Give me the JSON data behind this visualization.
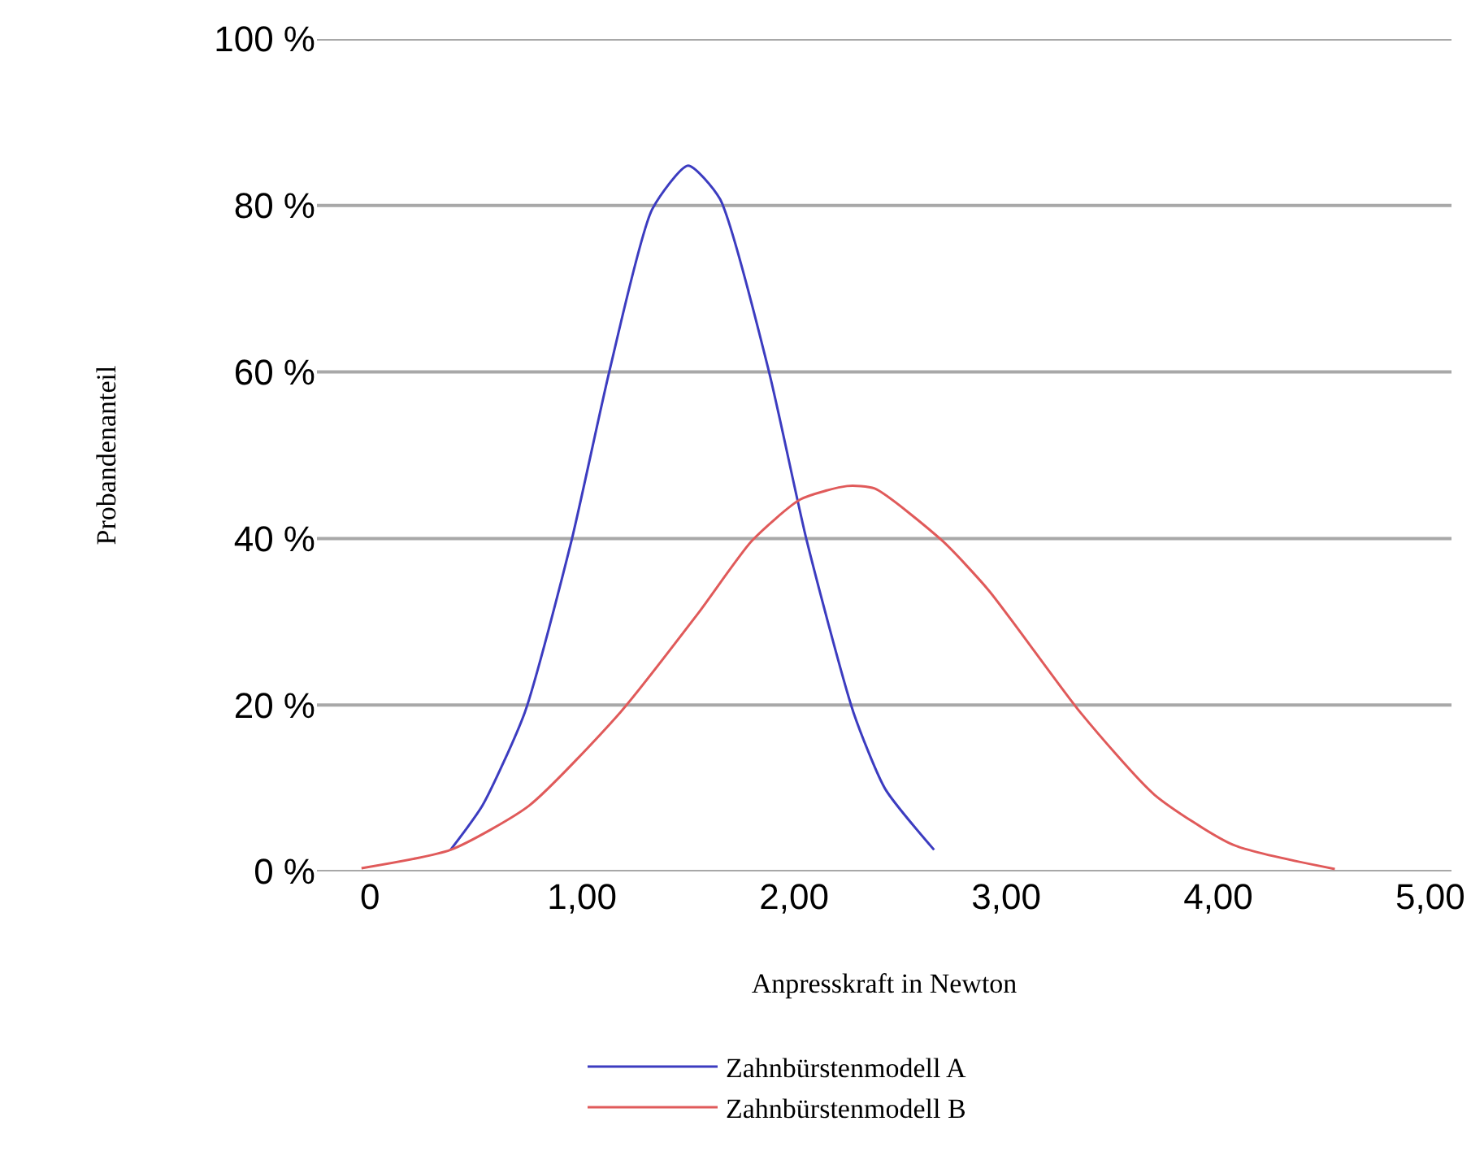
{
  "chart_data": {
    "type": "line",
    "xlabel": "Anpresskraft in Newton",
    "ylabel": "Probandenanteil",
    "xlim": [
      -0.25,
      5.1
    ],
    "xticks": [
      0,
      {
        "value": 1,
        "label": "1,00"
      },
      {
        "value": 2,
        "label": "2,00"
      },
      {
        "value": 3,
        "label": "3,00"
      },
      {
        "value": 4,
        "label": "4,00"
      },
      {
        "value": 5,
        "label": "5,00"
      }
    ],
    "ylim": [
      0,
      100
    ],
    "yticks": [
      {
        "value": 0,
        "label": "0 %"
      },
      {
        "value": 20,
        "label": "20 %"
      },
      {
        "value": 40,
        "label": "40 %"
      },
      {
        "value": 60,
        "label": "60 %"
      },
      {
        "value": 80,
        "label": "80 %"
      },
      {
        "value": 100,
        "label": "100 %"
      }
    ],
    "grid": "y",
    "legend": "bottom",
    "marker": "none",
    "line_style": "solid",
    "series": [
      {
        "name": "Zahnbürstenmodell A",
        "color": "#3c3cc0",
        "x": [
          0.38,
          0.53,
          0.73,
          0.95,
          1.13,
          1.33,
          1.5,
          1.65,
          1.88,
          2.06,
          2.28,
          2.43,
          2.66
        ],
        "values": [
          2.6,
          7.9,
          19.1,
          39.7,
          60.2,
          79.5,
          84.8,
          80.8,
          60.2,
          39.7,
          19.1,
          9.9,
          2.6
        ]
      },
      {
        "name": "Zahnbürstenmodell B",
        "color": "#e05a5a",
        "x": [
          -0.04,
          0.38,
          0.75,
          1.18,
          1.55,
          1.8,
          2.03,
          2.25,
          2.38,
          2.7,
          2.92,
          3.35,
          3.7,
          4.07,
          4.55
        ],
        "values": [
          0.4,
          2.6,
          7.9,
          19.1,
          31.1,
          39.7,
          44.7,
          46.3,
          46.0,
          39.7,
          33.7,
          19.1,
          9.2,
          3.2,
          0.3
        ]
      }
    ]
  }
}
